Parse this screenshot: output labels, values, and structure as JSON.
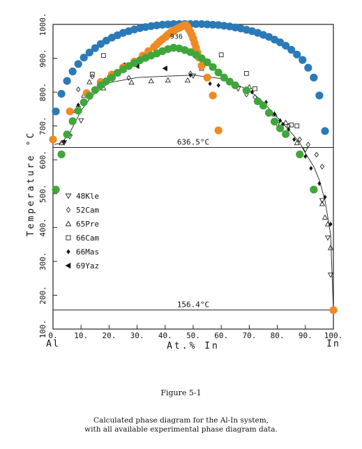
{
  "chart_data": {
    "type": "scatter",
    "xlabel": "At.% In",
    "ylabel": "Temperature °C",
    "xlim": [
      0,
      100
    ],
    "ylim": [
      100,
      1000
    ],
    "x_ticks": [
      "0.",
      "10.",
      "20.",
      "30.",
      "40.",
      "50.",
      "60.",
      "70.",
      "80.",
      "90.",
      "100."
    ],
    "y_ticks": [
      "100.",
      "200.",
      "300.",
      "400.",
      "500.",
      "600.",
      "700.",
      "800.",
      "900.",
      "1000."
    ],
    "x_end_labels": {
      "left": "Al",
      "right": "In"
    },
    "annotations": {
      "monotectic": {
        "text": "636.5°C",
        "temperature": 636.5,
        "x_range": [
          0,
          100
        ]
      },
      "eutectic": {
        "text": "156.4°C",
        "temperature": 156.4,
        "x_range": [
          0,
          100
        ]
      },
      "peak": {
        "text": "936",
        "x": 44,
        "y": 958
      }
    },
    "legend": {
      "placement": "left",
      "entries": [
        {
          "symbol": "triangle-down",
          "label": "48Kle"
        },
        {
          "symbol": "diamond",
          "label": "52Cam"
        },
        {
          "symbol": "triangle-up",
          "label": "65Pre"
        },
        {
          "symbol": "square",
          "label": "66Cam"
        },
        {
          "symbol": "filled-diamond",
          "label": "66Mas"
        },
        {
          "symbol": "triangle-left",
          "label": "69Yaz"
        }
      ]
    },
    "calculated_curves": [
      {
        "color": "#2a7ab8",
        "points": [
          [
            1,
            743
          ],
          [
            3,
            795
          ],
          [
            5,
            833
          ],
          [
            7,
            861
          ],
          [
            9,
            883
          ],
          [
            11,
            902
          ],
          [
            13,
            917
          ],
          [
            15,
            930
          ],
          [
            17,
            942
          ],
          [
            19,
            952
          ],
          [
            21,
            961
          ],
          [
            23,
            968
          ],
          [
            25,
            975
          ],
          [
            27,
            980
          ],
          [
            29,
            985
          ],
          [
            31,
            989
          ],
          [
            33,
            992
          ],
          [
            35,
            995
          ],
          [
            37,
            997
          ],
          [
            39,
            999
          ],
          [
            41,
            1000
          ],
          [
            43,
            1001
          ],
          [
            45,
            1001
          ],
          [
            47,
            1001
          ],
          [
            49,
            1001
          ],
          [
            51,
            1001
          ],
          [
            53,
            1001
          ],
          [
            55,
            1000
          ],
          [
            57,
            999
          ],
          [
            59,
            998
          ],
          [
            61,
            996
          ],
          [
            63,
            994
          ],
          [
            65,
            991
          ],
          [
            67,
            988
          ],
          [
            69,
            984
          ],
          [
            71,
            980
          ],
          [
            73,
            975
          ],
          [
            75,
            969
          ],
          [
            77,
            963
          ],
          [
            79,
            955
          ],
          [
            81,
            947
          ],
          [
            83,
            937
          ],
          [
            85,
            925
          ],
          [
            87,
            911
          ],
          [
            89,
            895
          ],
          [
            91,
            872
          ],
          [
            93,
            843
          ],
          [
            95,
            790
          ],
          [
            97,
            685
          ]
        ]
      },
      {
        "color": "#f08a24",
        "points": [
          [
            0,
            660
          ],
          [
            6,
            743
          ],
          [
            12,
            797
          ],
          [
            17,
            830
          ],
          [
            21,
            852
          ],
          [
            25,
            873
          ],
          [
            29,
            890
          ],
          [
            32,
            908
          ],
          [
            34,
            921
          ],
          [
            36,
            933
          ],
          [
            37,
            941
          ],
          [
            38,
            949
          ],
          [
            39,
            956
          ],
          [
            40,
            962
          ],
          [
            40.5,
            966
          ],
          [
            41,
            970
          ],
          [
            41.5,
            973
          ],
          [
            42,
            976
          ],
          [
            42.5,
            979
          ],
          [
            43,
            981
          ],
          [
            43.5,
            984
          ],
          [
            44,
            986
          ],
          [
            44.5,
            988
          ],
          [
            45,
            990
          ],
          [
            45.5,
            992
          ],
          [
            46,
            994
          ],
          [
            46.5,
            996
          ],
          [
            47,
            998
          ],
          [
            47.5,
            997
          ],
          [
            48,
            992
          ],
          [
            48.5,
            985
          ],
          [
            49,
            978
          ],
          [
            49.5,
            969
          ],
          [
            50,
            958
          ],
          [
            50.5,
            945
          ],
          [
            51,
            931
          ],
          [
            51.5,
            917
          ],
          [
            52,
            902
          ],
          [
            53,
            878
          ],
          [
            55,
            843
          ],
          [
            57,
            790
          ],
          [
            59,
            687
          ],
          [
            100,
            156
          ]
        ]
      },
      {
        "color": "#3fa63a",
        "points": [
          [
            1,
            512
          ],
          [
            3,
            616
          ],
          [
            5,
            675
          ],
          [
            7,
            714
          ],
          [
            9,
            745
          ],
          [
            11,
            770
          ],
          [
            13,
            789
          ],
          [
            15,
            806
          ],
          [
            17,
            820
          ],
          [
            19,
            832
          ],
          [
            21,
            843
          ],
          [
            23,
            857
          ],
          [
            25,
            867
          ],
          [
            27,
            877
          ],
          [
            29,
            886
          ],
          [
            31,
            894
          ],
          [
            33,
            901
          ],
          [
            35,
            908
          ],
          [
            37,
            914
          ],
          [
            39,
            921
          ],
          [
            41,
            927
          ],
          [
            43,
            931
          ],
          [
            45,
            929
          ],
          [
            47,
            924
          ],
          [
            49,
            918
          ],
          [
            51,
            910
          ],
          [
            53,
            900
          ],
          [
            55,
            888
          ],
          [
            57,
            874
          ],
          [
            59,
            858
          ],
          [
            61,
            843
          ],
          [
            63,
            831
          ],
          [
            65,
            820
          ],
          [
            69,
            805
          ],
          [
            73,
            773
          ],
          [
            75,
            760
          ],
          [
            77,
            739
          ],
          [
            79,
            713
          ],
          [
            81,
            693
          ],
          [
            83,
            676
          ],
          [
            88,
            616
          ],
          [
            93,
            512
          ]
        ]
      }
    ],
    "experimental_points": {
      "48Kle": [
        [
          4,
          651
        ],
        [
          6,
          668
        ],
        [
          10,
          716
        ],
        [
          50,
          848
        ],
        [
          66,
          810
        ],
        [
          80,
          705
        ],
        [
          90,
          630
        ],
        [
          96,
          480
        ],
        [
          98,
          370
        ],
        [
          99,
          260
        ]
      ],
      "52Cam": [
        [
          9,
          808
        ],
        [
          14,
          846
        ],
        [
          20,
          846
        ],
        [
          27,
          842
        ],
        [
          49,
          855
        ],
        [
          69,
          793
        ],
        [
          72,
          785
        ],
        [
          84,
          700
        ],
        [
          88,
          660
        ],
        [
          91,
          645
        ],
        [
          94,
          615
        ],
        [
          96,
          580
        ]
      ],
      "65Pre": [
        [
          3,
          650
        ],
        [
          8,
          745
        ],
        [
          11,
          790
        ],
        [
          13,
          830
        ],
        [
          18,
          812
        ],
        [
          28,
          829
        ],
        [
          35,
          833
        ],
        [
          41,
          835
        ],
        [
          48,
          835
        ],
        [
          70,
          815
        ],
        [
          79,
          735
        ],
        [
          83,
          710
        ],
        [
          87,
          650
        ],
        [
          96,
          470
        ],
        [
          97,
          430
        ],
        [
          98,
          410
        ],
        [
          99,
          340
        ]
      ],
      "66Cam": [
        [
          9,
          752
        ],
        [
          14,
          853
        ],
        [
          18,
          908
        ],
        [
          53,
          870
        ],
        [
          60,
          910
        ],
        [
          69,
          855
        ],
        [
          72,
          810
        ],
        [
          85,
          703
        ],
        [
          87,
          700
        ]
      ],
      "66Mas": [
        [
          4,
          654
        ],
        [
          6,
          675
        ],
        [
          9,
          762
        ],
        [
          49,
          850
        ],
        [
          56,
          825
        ],
        [
          59,
          820
        ],
        [
          71,
          800
        ],
        [
          76,
          770
        ],
        [
          79,
          735
        ],
        [
          81,
          716
        ],
        [
          82,
          705
        ],
        [
          84,
          690
        ],
        [
          86,
          660
        ],
        [
          90,
          610
        ],
        [
          92,
          575
        ],
        [
          95,
          530
        ],
        [
          97,
          490
        ],
        [
          99,
          410
        ]
      ],
      "69Yaz": [
        [
          25,
          880
        ],
        [
          30,
          877
        ],
        [
          40,
          870
        ]
      ]
    }
  },
  "caption": {
    "title": "Figure 5-1",
    "line1": "Calculated phase diagram for the Al-In system,",
    "line2": "with all available experimental phase diagram data."
  }
}
